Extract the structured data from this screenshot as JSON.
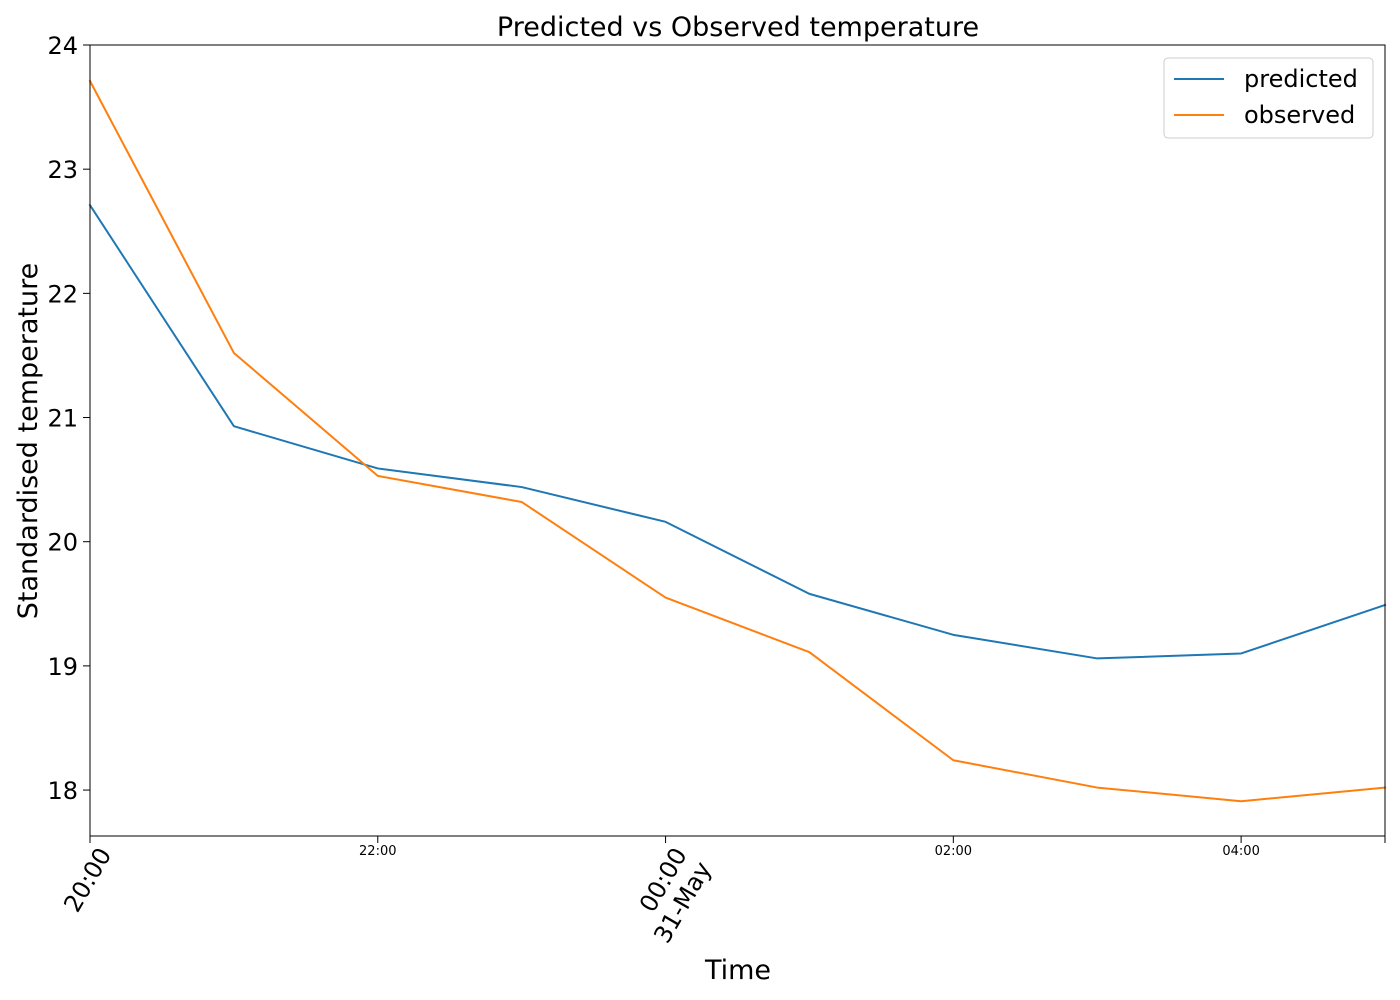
{
  "chart_data": {
    "type": "line",
    "title": "Predicted vs Observed temperature",
    "xlabel": "Time",
    "ylabel": "Standardised temperature",
    "x": [
      "20:00",
      "21:00",
      "22:00",
      "23:00",
      "00:00",
      "01:00",
      "02:00",
      "03:00",
      "04:00",
      "05:00"
    ],
    "xlim": [
      0,
      9
    ],
    "ylim": [
      17.63,
      24.0
    ],
    "x_ticks": [
      {
        "value": 0,
        "label": "20:00",
        "rotated": true
      },
      {
        "value": 2,
        "label": "22:00",
        "rotated": false
      },
      {
        "value": 4,
        "label": "00:00\n31-May",
        "rotated": true
      },
      {
        "value": 6,
        "label": "02:00",
        "rotated": false
      },
      {
        "value": 8,
        "label": "04:00",
        "rotated": false
      },
      {
        "value": 9,
        "label": "",
        "rotated": false
      }
    ],
    "y_ticks": [
      18,
      19,
      20,
      21,
      22,
      23,
      24
    ],
    "grid": false,
    "legend_position": "top-right",
    "series": [
      {
        "name": "predicted",
        "color": "#1f77b4",
        "values": [
          22.71,
          20.93,
          20.59,
          20.44,
          20.16,
          19.58,
          19.25,
          19.06,
          19.1,
          19.49
        ]
      },
      {
        "name": "observed",
        "color": "#ff7f0e",
        "values": [
          23.71,
          21.52,
          20.53,
          20.32,
          19.55,
          19.11,
          18.24,
          18.02,
          17.91,
          18.02
        ]
      }
    ]
  }
}
